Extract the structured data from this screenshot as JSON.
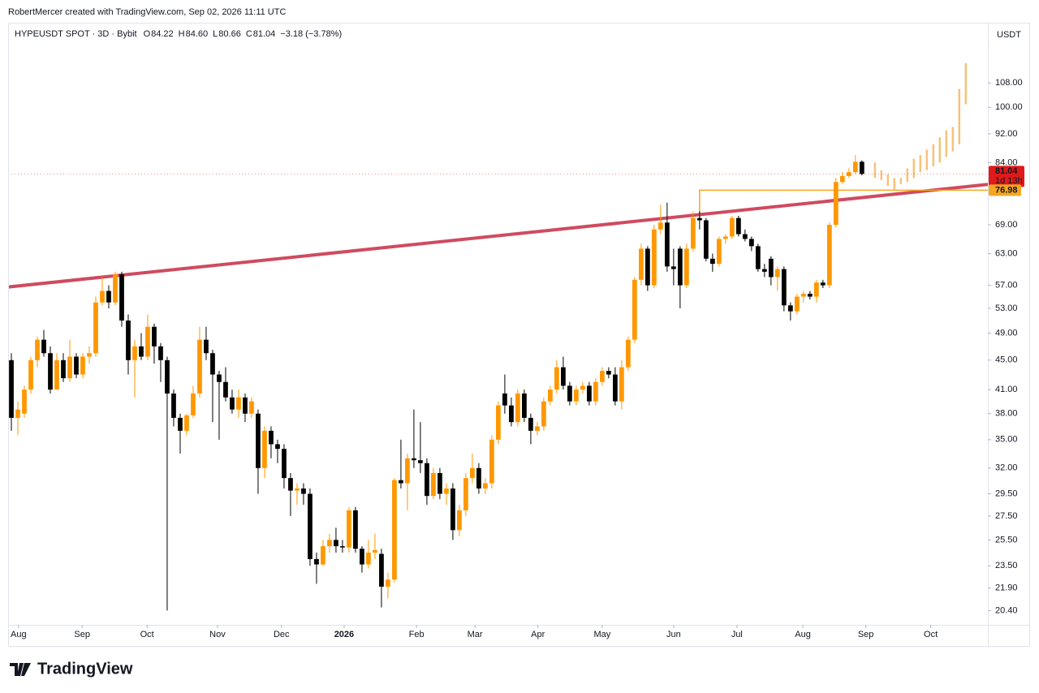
{
  "header": "RobertMercer created with TradingView.com, Sep 02, 2026 11:11 UTC",
  "footer": "TradingView",
  "legend": {
    "symbol": "HYPEUSDT SPOT · 3D · Bybit",
    "o_label": "O",
    "o": "84.22",
    "h_label": "H",
    "h": "84.60",
    "l_label": "L",
    "l": "80.66",
    "c_label": "C",
    "c": "81.04",
    "change": "−3.18 (−3.78%)"
  },
  "chart_data": {
    "type": "candlestick",
    "axis_title": "USDT",
    "log_scale": true,
    "grid": false,
    "up_color": "#ff9800",
    "down_color": "#000000",
    "xlim": [
      -0.5,
      150.4
    ],
    "ylim": [
      19.5,
      130
    ],
    "xticks": [
      {
        "value": 1.1,
        "label": "Aug"
      },
      {
        "value": 10.9,
        "label": "Sep"
      },
      {
        "value": 20.9,
        "label": "Oct"
      },
      {
        "value": 31.75,
        "label": "Nov"
      },
      {
        "value": 41.6,
        "label": "Dec"
      },
      {
        "value": 51.25,
        "label": "2026"
      },
      {
        "value": 62.4,
        "label": "Feb"
      },
      {
        "value": 71.4,
        "label": "Mar"
      },
      {
        "value": 81.1,
        "label": "Apr"
      },
      {
        "value": 91,
        "label": "May"
      },
      {
        "value": 102,
        "label": "Jun"
      },
      {
        "value": 111.75,
        "label": "Jul"
      },
      {
        "value": 121.9,
        "label": "Aug"
      },
      {
        "value": 131.6,
        "label": "Sep"
      },
      {
        "value": 141.6,
        "label": "Oct"
      }
    ],
    "yticks": [
      {
        "value": 20.4,
        "label": "20.40"
      },
      {
        "value": 21.9,
        "label": "21.90"
      },
      {
        "value": 23.5,
        "label": "23.50"
      },
      {
        "value": 25.5,
        "label": "25.50"
      },
      {
        "value": 27.5,
        "label": "27.50"
      },
      {
        "value": 29.5,
        "label": "29.50"
      },
      {
        "value": 32,
        "label": "32.00"
      },
      {
        "value": 35,
        "label": "35.00"
      },
      {
        "value": 38,
        "label": "38.00"
      },
      {
        "value": 41,
        "label": "41.00"
      },
      {
        "value": 45,
        "label": "45.00"
      },
      {
        "value": 49,
        "label": "49.00"
      },
      {
        "value": 53,
        "label": "53.00"
      },
      {
        "value": 57,
        "label": "57.00"
      },
      {
        "value": 63,
        "label": "63.00"
      },
      {
        "value": 69,
        "label": "69.00"
      },
      {
        "value": 84,
        "label": "84.00"
      },
      {
        "value": 92,
        "label": "92.00"
      },
      {
        "value": 100,
        "label": "100.00"
      },
      {
        "value": 108,
        "label": "108.00"
      }
    ],
    "candles": {
      "open": [
        45,
        37.5,
        38,
        41,
        45,
        48,
        46,
        41,
        45,
        42.5,
        45.5,
        43,
        45.5,
        46,
        54,
        56,
        54,
        59,
        51,
        45,
        47,
        45.5,
        50,
        47,
        45,
        40.5,
        37.5,
        36,
        37.8,
        40.5,
        48,
        46,
        43,
        42,
        40,
        38.5,
        40,
        38,
        38,
        32,
        36,
        34.5,
        34,
        31,
        29.8,
        30,
        29.5,
        24,
        23.6,
        25,
        25.5,
        25,
        24.9,
        28,
        24.8,
        23.6,
        24.5,
        24.4,
        22,
        22.5,
        30.8,
        30.5,
        33,
        32.8,
        32.5,
        29.3,
        31.5,
        29.5,
        30,
        26.3,
        28,
        31,
        32,
        30,
        30.5,
        35,
        40.5,
        39,
        37,
        40.5,
        37.5,
        36,
        36.5,
        39.5,
        41,
        44,
        41.5,
        39.5,
        41,
        41.5,
        39.5,
        42,
        43.5,
        43,
        39.5,
        44,
        48,
        58,
        64,
        57,
        68,
        69.5,
        60.5,
        64,
        57,
        64,
        70.5,
        70,
        62,
        61,
        66,
        66.5,
        70.5,
        67,
        66,
        64.5,
        60,
        62,
        58.5,
        60,
        53.5,
        52.5,
        55,
        55.5,
        55,
        57.5,
        57,
        69,
        79,
        80.5,
        81.5,
        84.22
      ],
      "high": [
        46,
        39.5,
        41.5,
        45.5,
        48.5,
        49.5,
        47,
        46,
        46,
        48,
        46,
        46,
        47,
        55,
        58.5,
        57,
        59.5,
        59.5,
        52,
        48,
        49,
        52,
        50.5,
        47.5,
        45.5,
        41,
        38,
        38,
        41.5,
        50,
        50,
        46.5,
        43.5,
        44,
        41,
        41,
        40.5,
        40,
        38.5,
        36.5,
        36.5,
        35,
        34.5,
        31.5,
        30.5,
        30.5,
        30,
        24.5,
        25.5,
        26,
        26.5,
        25.5,
        28.3,
        28.3,
        25,
        25.5,
        26,
        24.8,
        23,
        31,
        35,
        33.5,
        38.5,
        37,
        33,
        32,
        32,
        30.5,
        30.5,
        28.5,
        31.5,
        33.5,
        32.5,
        31,
        35.5,
        39.5,
        43,
        40,
        41,
        41,
        38,
        37,
        40,
        41.5,
        45,
        45.5,
        42,
        41.5,
        42,
        42,
        42.5,
        44,
        44,
        44,
        45,
        48.5,
        58.5,
        65,
        64.5,
        69,
        73.5,
        74,
        64,
        64.5,
        65,
        72,
        72,
        70.5,
        63,
        66.5,
        67,
        71,
        71,
        68,
        66.5,
        65,
        61,
        62.5,
        60.5,
        60.5,
        54,
        55.5,
        56,
        56,
        58,
        58,
        69.5,
        80,
        81.5,
        82.5,
        86,
        84.6
      ],
      "low": [
        36,
        35.5,
        37.5,
        40.5,
        44,
        45.5,
        40.5,
        41,
        42,
        42,
        42.5,
        42.5,
        44.5,
        45.5,
        53.5,
        53,
        53.5,
        50,
        43,
        40,
        45,
        45,
        44.5,
        42,
        20.4,
        36.5,
        33.5,
        35.5,
        37.5,
        40,
        45,
        37,
        35,
        39.5,
        38,
        37.5,
        37,
        37.5,
        29.5,
        31,
        33,
        32.5,
        30,
        27.5,
        28.5,
        28.5,
        23.5,
        22.2,
        23.5,
        24.5,
        24.5,
        24.5,
        24.5,
        24.5,
        23,
        23.3,
        24,
        20.6,
        21.2,
        22.3,
        30,
        28,
        32,
        31.5,
        28.5,
        29,
        29,
        28.5,
        25.5,
        25.8,
        27.5,
        30.5,
        29.5,
        29.5,
        30,
        34.5,
        38,
        36.5,
        36.5,
        37,
        34.5,
        35.5,
        36,
        39,
        40.5,
        41,
        39,
        39,
        40.5,
        39,
        39,
        41.5,
        42.5,
        39,
        38.5,
        43.5,
        47.5,
        57,
        56,
        56.5,
        67,
        59.5,
        57,
        53,
        56.5,
        63.5,
        68,
        61.5,
        59.5,
        60.5,
        65,
        66,
        66.5,
        65.5,
        63.5,
        59.5,
        58.5,
        57,
        56,
        52.5,
        51,
        52,
        54,
        54.5,
        54,
        56.5,
        56.5,
        68.5,
        78.5,
        80,
        81,
        80.66
      ],
      "close": [
        37.5,
        38.5,
        41,
        45,
        48,
        46,
        41,
        45,
        42.5,
        45.5,
        43,
        45.5,
        46,
        54,
        56,
        54,
        59,
        51,
        45,
        47,
        45.5,
        50,
        47,
        45,
        40.5,
        37.5,
        36,
        37.8,
        40.5,
        48,
        46,
        43,
        42,
        40,
        38.5,
        40,
        38,
        39.5,
        32,
        36,
        34.5,
        34,
        31,
        29.8,
        30,
        29.5,
        24,
        23.6,
        25,
        25.5,
        25,
        24.9,
        28,
        24.8,
        23.6,
        24.5,
        24.7,
        22,
        22.5,
        30.8,
        30.5,
        33,
        32.8,
        32.5,
        29.3,
        31.5,
        29.5,
        30,
        26.3,
        28,
        31,
        32,
        30,
        30.5,
        35,
        39,
        39,
        37,
        40.5,
        37.5,
        36,
        36.5,
        39.5,
        41,
        44,
        41.5,
        39.5,
        41,
        41.5,
        39.5,
        42,
        43.5,
        43,
        39.5,
        44,
        48,
        58,
        64,
        57,
        68,
        69.5,
        60.5,
        60,
        57,
        64,
        70.5,
        70,
        62,
        61,
        66,
        66.5,
        70.5,
        67,
        66,
        64.5,
        60,
        59.5,
        58.5,
        60,
        53.5,
        52.5,
        55,
        55.5,
        55,
        57.5,
        57,
        69,
        79,
        80.5,
        81.5,
        84.2,
        81.04
      ]
    },
    "projection": {
      "color": "#f7c27a",
      "start": 133,
      "lows": [
        80,
        79.5,
        78,
        77,
        78.5,
        79,
        80,
        81.5,
        82,
        83,
        84,
        85.5,
        87,
        89,
        101
      ],
      "highs": [
        84,
        82,
        81,
        80,
        80,
        82.5,
        85,
        86,
        87.5,
        89,
        91,
        93,
        94,
        106,
        115
      ]
    },
    "trendline": {
      "color": "#cf4b5f",
      "x": [
        -0.5,
        150.4
      ],
      "y": [
        56.7,
        78.4
      ]
    },
    "level": {
      "color": "#f5a623",
      "value": 76.98,
      "start": 106,
      "from": 70.5
    },
    "last_price": {
      "color": "#e01a1a",
      "countdown": "1d 13h"
    }
  }
}
